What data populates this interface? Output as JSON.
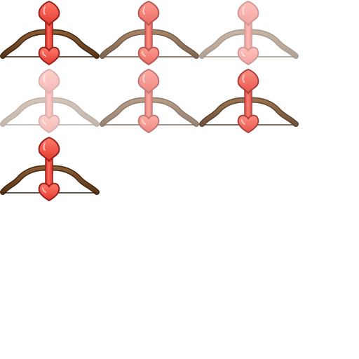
{
  "sprite_sheet": {
    "frame_count": 7,
    "icon": "cupid-bow-with-heart-arrow-icon",
    "colors": {
      "bow": "#6b4423",
      "bow_dark": "#3e2612",
      "string": "#2e1d0e",
      "arrow": "#e8413a",
      "arrow_light": "#ff7a6a",
      "arrow_outline": "#9a1f1a"
    },
    "frames": [
      {
        "opacity": 1.0
      },
      {
        "opacity": 0.75
      },
      {
        "opacity": 0.45
      },
      {
        "opacity": 0.35
      },
      {
        "opacity": 0.6
      },
      {
        "opacity": 0.85
      },
      {
        "opacity": 1.0
      }
    ]
  }
}
